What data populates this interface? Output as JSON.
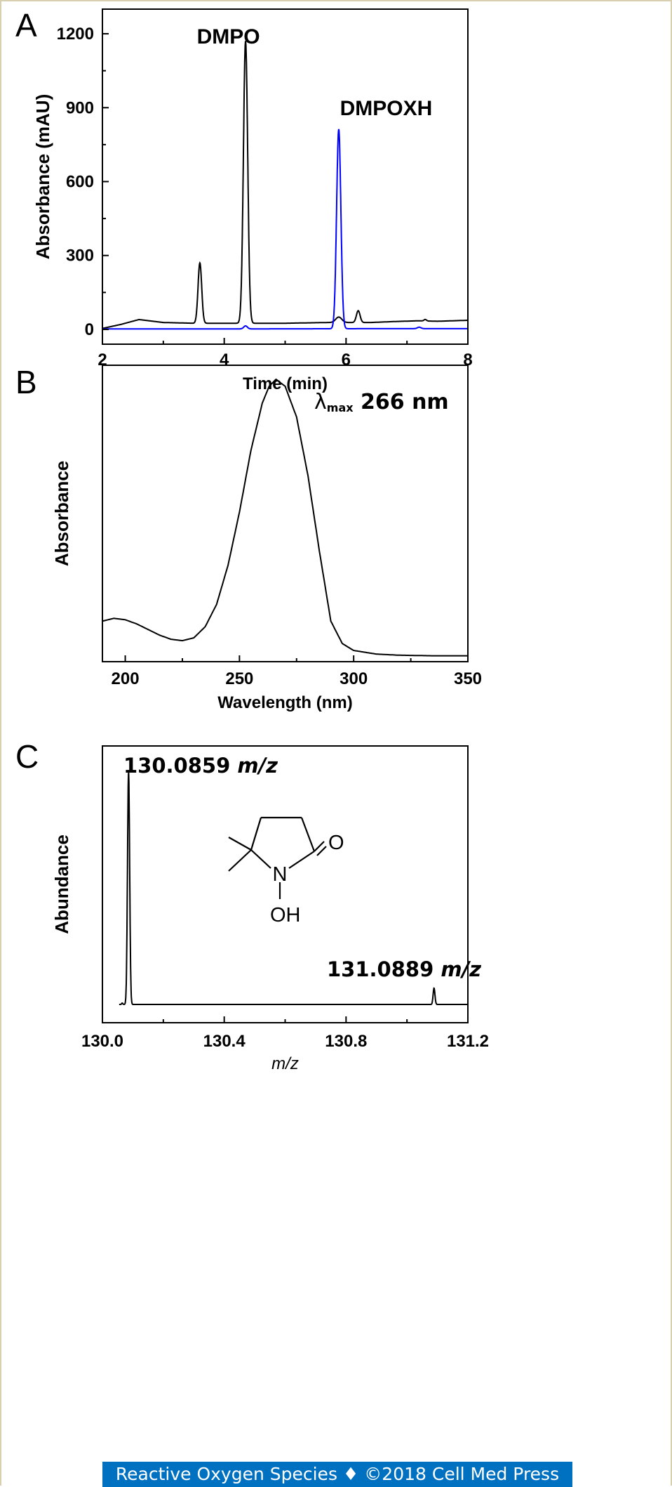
{
  "chart_data": [
    {
      "panel_label": "A",
      "type": "line",
      "xlabel": "Time (min)",
      "ylabel": "Absorbance (mAU)",
      "xlim": [
        2,
        8
      ],
      "ylim": [
        -60,
        1300
      ],
      "xticks": [
        2,
        4,
        6,
        8
      ],
      "yticks": [
        0,
        300,
        600,
        900,
        1200
      ],
      "grid": false,
      "legend": "none",
      "colors": {
        "black": "#000000",
        "blue": "#0000ff"
      },
      "annotations": [
        {
          "text": "DMPO",
          "x": 3.55,
          "y": 1160
        },
        {
          "text": "DMPOXH",
          "x": 5.9,
          "y": 870
        }
      ],
      "series": [
        {
          "color": "#000000",
          "baseline": [
            [
              2.0,
              4
            ],
            [
              2.3,
              20
            ],
            [
              2.6,
              40
            ],
            [
              3.0,
              28
            ],
            [
              3.5,
              25
            ],
            [
              4.6,
              25
            ],
            [
              5.0,
              25
            ],
            [
              5.7,
              28
            ],
            [
              6.4,
              28
            ],
            [
              6.8,
              32
            ],
            [
              7.2,
              35
            ],
            [
              7.5,
              33
            ],
            [
              8.0,
              37
            ]
          ],
          "peaks": [
            {
              "x": 3.6,
              "height": 245,
              "width": 0.03
            },
            {
              "x": 4.35,
              "height": 1145,
              "width": 0.035
            },
            {
              "x": 5.88,
              "height": 22,
              "width": 0.05
            },
            {
              "x": 6.2,
              "height": 48,
              "width": 0.03
            },
            {
              "x": 7.3,
              "height": 6,
              "width": 0.02
            }
          ]
        },
        {
          "color": "#0000ff",
          "baseline": [
            [
              2.0,
              2
            ],
            [
              4.0,
              2
            ],
            [
              6.5,
              3
            ],
            [
              8.0,
              3
            ]
          ],
          "peaks": [
            {
              "x": 4.35,
              "height": 12,
              "width": 0.03
            },
            {
              "x": 5.88,
              "height": 810,
              "width": 0.035
            },
            {
              "x": 7.2,
              "height": 6,
              "width": 0.03
            }
          ]
        }
      ]
    },
    {
      "panel_label": "B",
      "type": "line",
      "xlabel": "Wavelength (nm)",
      "ylabel": "Absorbance",
      "xlim": [
        190,
        350
      ],
      "ylim": [
        0,
        1
      ],
      "xticks": [
        200,
        250,
        300,
        350
      ],
      "grid": false,
      "legend": "none",
      "annotation": {
        "lambda": "λ",
        "subscript": "max",
        "value": "266 nm"
      },
      "series": [
        {
          "color": "#000000",
          "points": [
            [
              190,
              0.13
            ],
            [
              195,
              0.14
            ],
            [
              200,
              0.135
            ],
            [
              205,
              0.12
            ],
            [
              210,
              0.1
            ],
            [
              215,
              0.08
            ],
            [
              220,
              0.065
            ],
            [
              225,
              0.06
            ],
            [
              230,
              0.07
            ],
            [
              235,
              0.11
            ],
            [
              240,
              0.19
            ],
            [
              245,
              0.33
            ],
            [
              250,
              0.52
            ],
            [
              255,
              0.74
            ],
            [
              260,
              0.91
            ],
            [
              263,
              0.97
            ],
            [
              266,
              0.995
            ],
            [
              270,
              0.97
            ],
            [
              275,
              0.86
            ],
            [
              280,
              0.65
            ],
            [
              285,
              0.38
            ],
            [
              290,
              0.13
            ],
            [
              295,
              0.05
            ],
            [
              300,
              0.025
            ],
            [
              310,
              0.012
            ],
            [
              320,
              0.008
            ],
            [
              335,
              0.006
            ],
            [
              350,
              0.006
            ]
          ]
        }
      ]
    },
    {
      "panel_label": "C",
      "type": "line",
      "xlabel": "m/z",
      "ylabel": "Abundance",
      "xlim": [
        130.0,
        131.2
      ],
      "ylim": [
        0,
        1.08
      ],
      "xticks": [
        130.0,
        130.4,
        130.8,
        131.2
      ],
      "xtick_labels": [
        "130.0",
        "130.4",
        "130.8",
        "131.2"
      ],
      "grid": false,
      "legend": "none",
      "peak_labels": [
        {
          "value": "130.0859",
          "unit": "m/z"
        },
        {
          "value": "131.0889",
          "unit": "m/z"
        }
      ],
      "structure_labels": {
        "oxygen": "O",
        "nitrogen": "N",
        "hydroxyl": "OH"
      },
      "series": [
        {
          "color": "#000000",
          "peaks": [
            {
              "x": 130.0859,
              "height": 1.0,
              "width": 0.0035
            },
            {
              "x": 130.065,
              "height": 0.006,
              "width": 0.002
            },
            {
              "x": 131.0889,
              "height": 0.07,
              "width": 0.003
            }
          ]
        }
      ]
    }
  ],
  "footer": {
    "journal": "Reactive Oxygen Species",
    "separator": "♦",
    "copyright": "©2018 Cell Med Press"
  }
}
